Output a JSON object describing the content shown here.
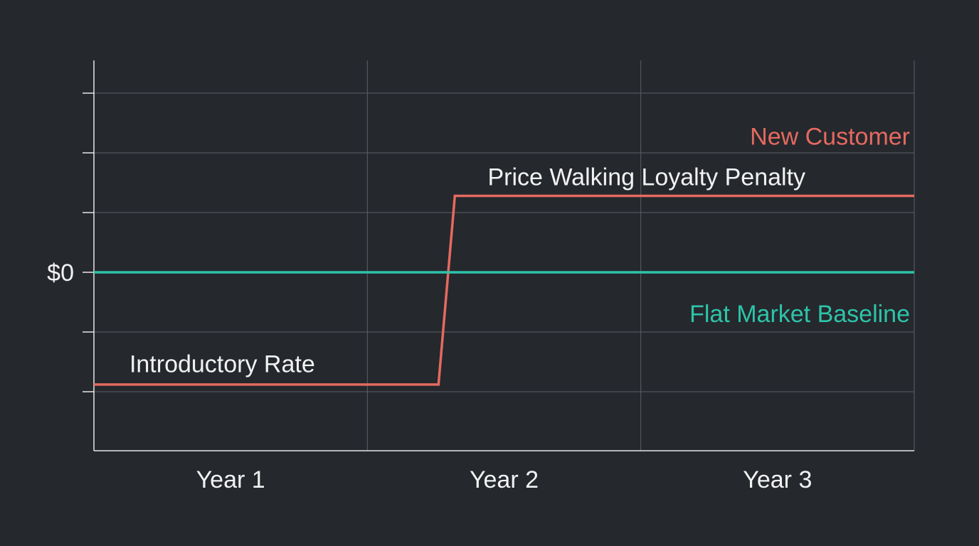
{
  "chart_data": {
    "type": "line",
    "title": "",
    "xlabel": "",
    "ylabel": "",
    "categories": [
      "Year 1",
      "Year 2",
      "Year 3"
    ],
    "xlim": [
      0,
      3
    ],
    "ylim": [
      -3,
      3
    ],
    "grid": true,
    "y_tick_labels": [
      {
        "y": 0,
        "label": "$0"
      }
    ],
    "series": [
      {
        "name": "New Customer",
        "color": "#e56a60",
        "points": [
          {
            "x": 0,
            "y": -1.88
          },
          {
            "x": 1.26,
            "y": -1.88
          },
          {
            "x": 1.32,
            "y": 1.28
          },
          {
            "x": 3,
            "y": 1.28
          }
        ]
      },
      {
        "name": "Flat Market Baseline",
        "color": "#2ec4a9",
        "points": [
          {
            "x": 0,
            "y": 0
          },
          {
            "x": 3,
            "y": 0
          }
        ]
      }
    ],
    "annotations": [
      {
        "text": "Introductory Rate",
        "x": 0.13,
        "y": -1.53
      },
      {
        "text": "Price Walking Loyalty Penalty",
        "x": 1.44,
        "y": 1.6
      }
    ],
    "colors": {
      "background": "#25282d",
      "axis": "#e6e6e6",
      "grid": "#5c6066",
      "text": "#f2f2f2"
    }
  }
}
